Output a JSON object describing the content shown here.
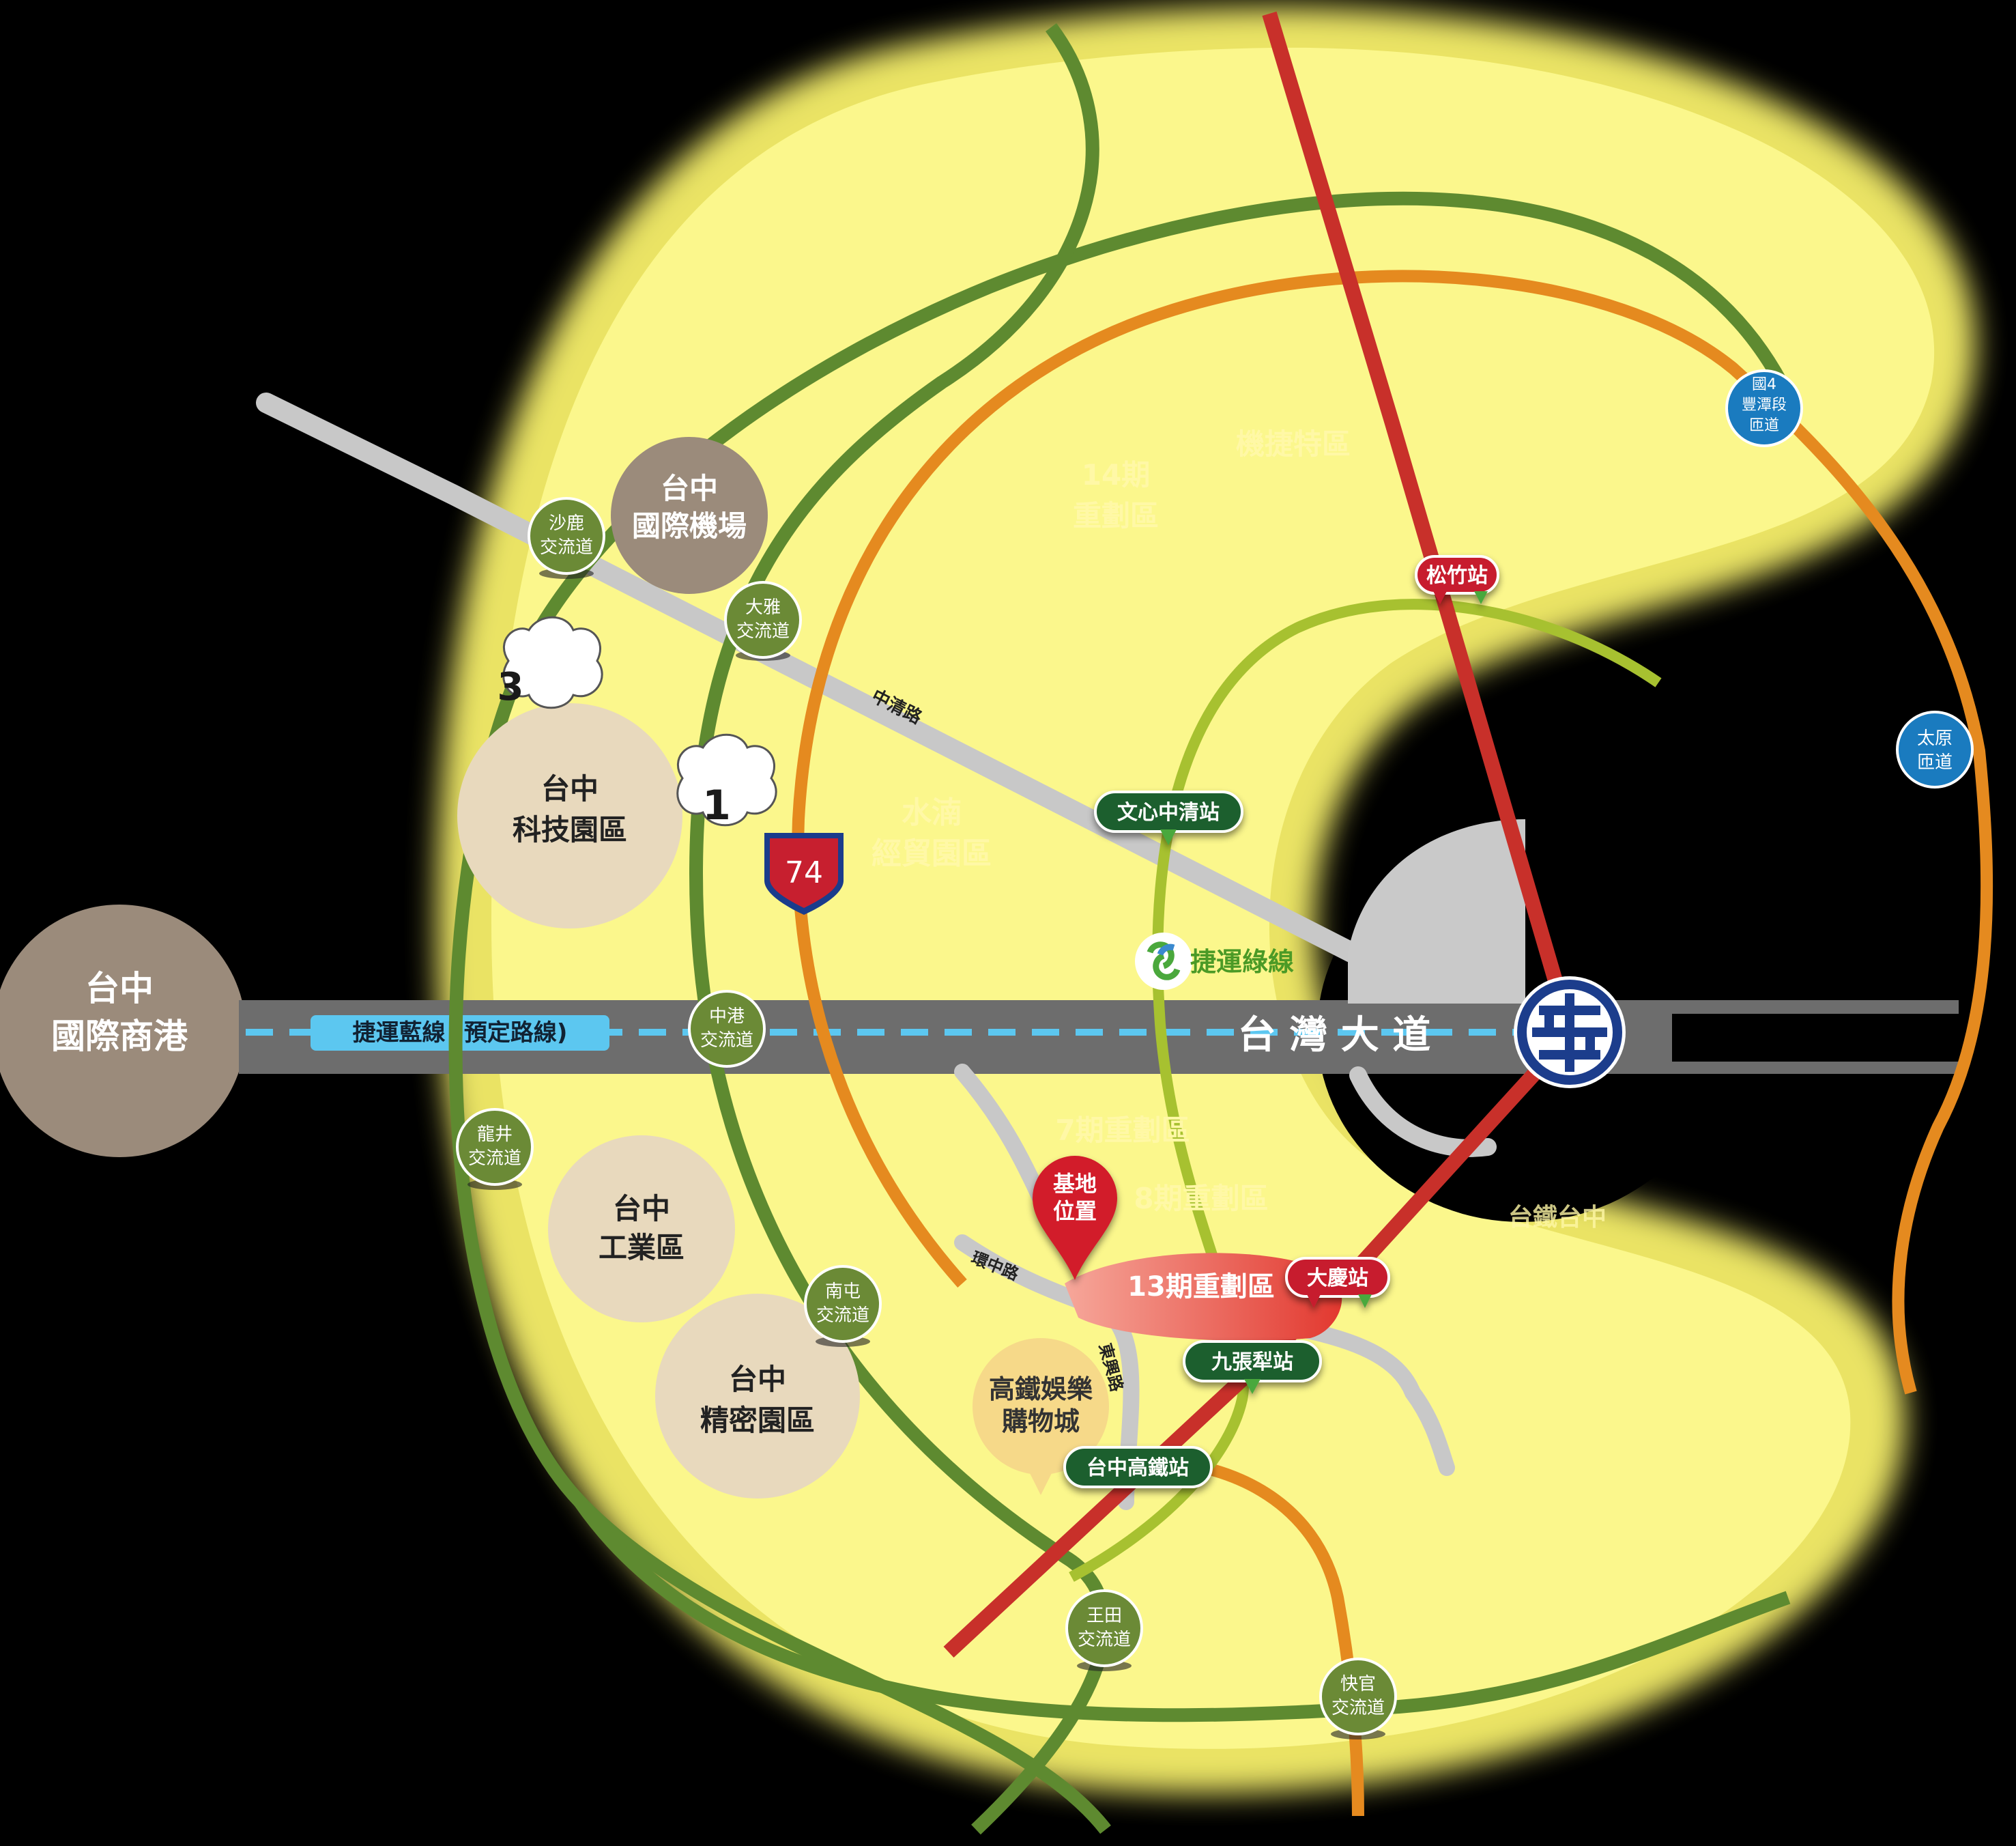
{
  "colors": {
    "background": "#000000",
    "yellow_glow": "#f8f37a",
    "yellow_core": "#fbf78c",
    "green_ring": "#5e8a30",
    "orange_ring": "#e58a1f",
    "lime_ring": "#a7c130",
    "red_rail": "#c8302a",
    "gray_road": "#c8c8c8",
    "avenue": "#6d6d6d",
    "blue_line": "#5cc7f0",
    "zone_tan": "#e8d9bd",
    "brown_circle": "#9b8b7b",
    "station_green": "#1f5e2e",
    "station_red": "#c71f2f",
    "interchange_blue": "#1a7bbf",
    "site_red": "#e2382f",
    "label_green": "#5e9a2c",
    "label_yellow": "#fff6a0"
  },
  "circles": {
    "port": [
      "台中",
      "國際商港"
    ],
    "airport": [
      "台中",
      "國際機場"
    ],
    "science_park": [
      "台中",
      "科技園區"
    ],
    "industrial_zone": [
      "台中",
      "工業區"
    ],
    "precision_park": [
      "台中",
      "精密園區"
    ],
    "hsr_mall": [
      "高鐵娛樂",
      "購物城"
    ]
  },
  "interchanges": {
    "shalu": [
      "沙鹿",
      "交流道"
    ],
    "daya": [
      "大雅",
      "交流道"
    ],
    "zhonggang": [
      "中港",
      "交流道"
    ],
    "longjing": [
      "龍井",
      "交流道"
    ],
    "nantun": [
      "南屯",
      "交流道"
    ],
    "wangtian": [
      "王田",
      "交流道"
    ],
    "kuaiguan": [
      "快官",
      "交流道"
    ],
    "fengtan": [
      "國4",
      "豐潭段",
      "匝道"
    ],
    "taiyuan": [
      "太原",
      "匝道"
    ]
  },
  "stations": {
    "songzhu": "松竹站",
    "wenxin_zhongqing": "文心中清站",
    "daqing": "大慶站",
    "jiuzhangli": "九張犁站",
    "hsr": "台中高鐵站"
  },
  "districts": {
    "phase14": [
      "14期",
      "重劃區"
    ],
    "jijie": "機捷特區",
    "shuinan": [
      "水湳",
      "經貿園區"
    ],
    "phase7": "7期重劃區",
    "phase8": "8期重劃區",
    "phase13": "13期重劃區"
  },
  "roads": {
    "zhongqing": "中清路",
    "huanzhong": "環中路",
    "dongshan": "東興路",
    "taiwan_blvd": "台 灣 大 道",
    "mrt_blue": "捷運藍線 (預定路線)",
    "mrt_green": "捷運綠線",
    "taichung_station_partial": "台鐵台中"
  },
  "site": [
    "基地",
    "位置"
  ],
  "highways": {
    "fwy3": "3",
    "fwy1": "1",
    "expwy74": "74"
  },
  "icons": {
    "tra_logo": "taiwan-railway-logo",
    "mrt_logo": "mrt-green-logo",
    "pin": "location-pin"
  }
}
